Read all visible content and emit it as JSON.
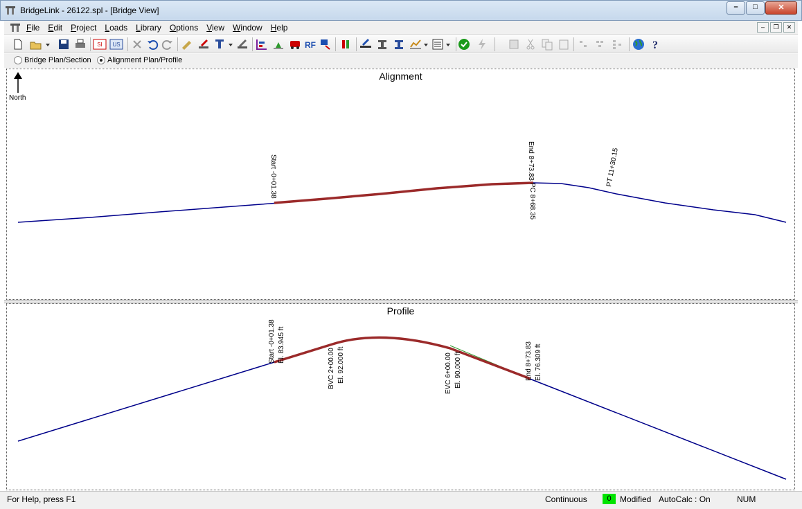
{
  "window": {
    "title": "BridgeLink - 26122.spl - [Bridge View]",
    "minimize": "–",
    "maximize": "□",
    "close": "✕"
  },
  "menu": {
    "items": [
      {
        "accel": "F",
        "rest": "ile"
      },
      {
        "accel": "E",
        "rest": "dit"
      },
      {
        "accel": "P",
        "rest": "roject"
      },
      {
        "accel": "L",
        "rest": "oads"
      },
      {
        "accel": "L",
        "rest": "ibrary"
      },
      {
        "accel": "O",
        "rest": "ptions"
      },
      {
        "accel": "V",
        "rest": "iew"
      },
      {
        "accel": "W",
        "rest": "indow"
      },
      {
        "accel": "H",
        "rest": "elp"
      }
    ]
  },
  "toolbar": {
    "si_label": "SI",
    "us_label": "US",
    "rf_label": "RF",
    "icons": [
      "new-icon",
      "open-icon",
      "save-icon",
      "print-icon",
      "si-units-icon",
      "us-units-icon",
      "delete-icon",
      "undo-icon",
      "redo-icon",
      "edit-girder-icon",
      "edit-deck-icon",
      "edit-pier-icon",
      "edit-span-icon",
      "edit-alignment-icon",
      "edit-profile-icon",
      "load-rating-icon",
      "rf-icon",
      "bridge-analysis-icon",
      "bridge-export-icon",
      "girder-select-icon",
      "view-girder-icon",
      "report-icon",
      "chart-icon",
      "status-check-icon",
      "lightning-icon",
      "copy-icon",
      "cut-icon",
      "paste-icon",
      "properties-icon",
      "align-left-icon",
      "align-center-icon",
      "distribute-icon",
      "globe-icon",
      "help-icon"
    ]
  },
  "view_options": {
    "bridge_plan": "Bridge Plan/Section",
    "alignment_plan": "Alignment Plan/Profile",
    "selected": "alignment_plan"
  },
  "alignment": {
    "title": "Alignment",
    "north_label": "North",
    "labels": {
      "start": "Start -0+01.38",
      "end": "End 8+73.83",
      "pc": "PC 8+68.35",
      "pt": "PT 11+30.15"
    },
    "colors": {
      "alignment": "#00008b",
      "bridge": "#9b2a2a"
    }
  },
  "profile": {
    "title": "Profile",
    "labels": {
      "start_station": "Start -0+01.38",
      "start_elev": "El. 83.945 ft",
      "bvc_station": "BVC 2+00.00",
      "bvc_elev": "El. 92.000 ft",
      "evc_station": "EVC 6+00.00",
      "evc_elev": "El. 90.000 ft",
      "end_station": "End 8+73.83",
      "end_elev": "El. 76.309 ft"
    },
    "colors": {
      "profile": "#00008b",
      "bridge": "#9b2a2a",
      "grade": "#2e9a2e"
    }
  },
  "status": {
    "help": "For Help, press F1",
    "mode": "Continuous",
    "badge": "0",
    "modified": "Modified",
    "autocalc": "AutoCalc : On",
    "num": "NUM"
  }
}
